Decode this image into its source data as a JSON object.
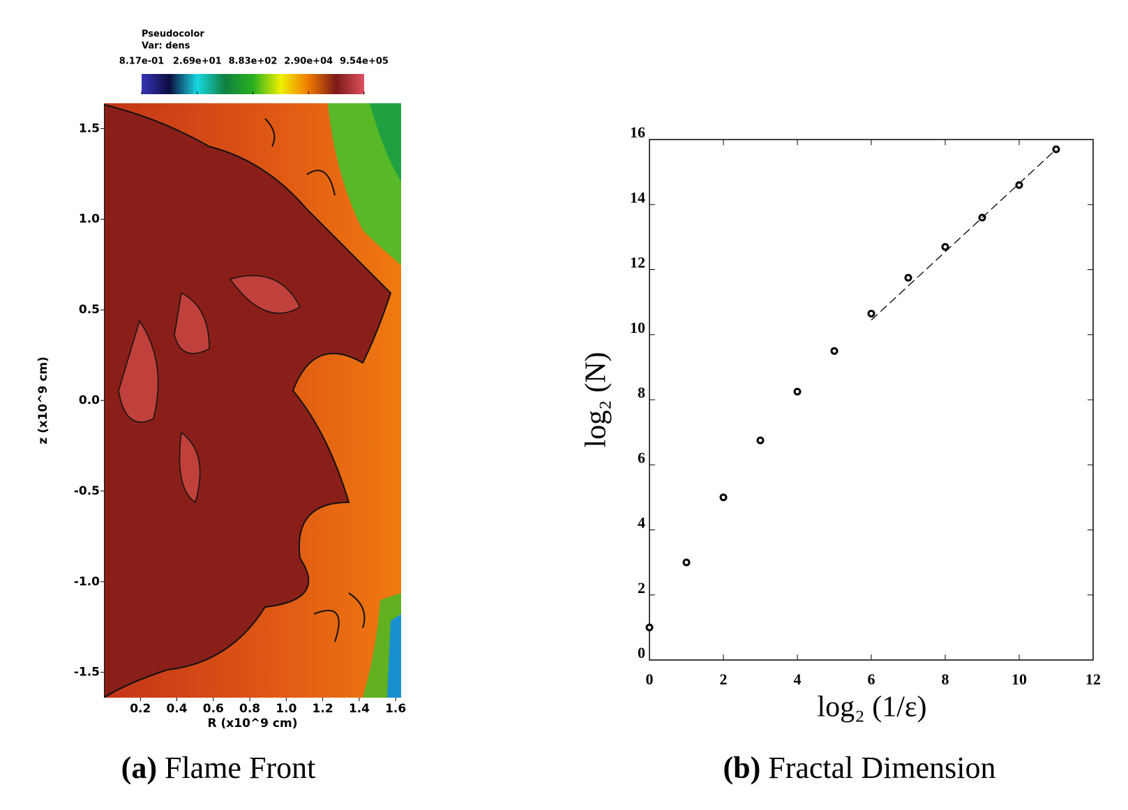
{
  "chart_data": [
    {
      "type": "image",
      "colorbar": {
        "title": "Pseudocolor",
        "subtitle": "Var: dens",
        "log_scale": true,
        "lim": [
          0.817,
          954000
        ],
        "ticks": [
          {
            "value": 0.817,
            "label": "8.17e-01"
          },
          {
            "value": 26.9,
            "label": "2.69e+01"
          },
          {
            "value": 883,
            "label": "8.83e+02"
          },
          {
            "value": 29000,
            "label": "2.90e+04"
          },
          {
            "value": 954000,
            "label": "9.54e+05"
          }
        ],
        "colors": [
          "#3535b8",
          "#0c0c40",
          "#18d8e0",
          "#108040",
          "#28b020",
          "#f0f000",
          "#f07a00",
          "#7a1a18",
          "#e05060"
        ]
      },
      "xlabel": "R (x10^9 cm)",
      "ylabel": "z (x10^9 cm)",
      "xlim": [
        0,
        1.63
      ],
      "ylim": [
        -1.64,
        1.64
      ],
      "xticks": [
        0.2,
        0.4,
        0.6,
        0.8,
        {
          "value": 1,
          "label": "1.0"
        },
        1.2,
        1.4,
        1.6
      ],
      "yticks": [
        -1.5,
        {
          "value": -1,
          "label": "-1.0"
        },
        -0.5,
        {
          "value": 0,
          "label": "0.0"
        },
        0.5,
        {
          "value": 1,
          "label": "1.0"
        },
        1.5
      ],
      "caption_label": "(a)",
      "caption": "Flame Front"
    },
    {
      "type": "scatter",
      "xlabel": "log₂ (1/ε)",
      "ylabel": "log₂ (N)",
      "xlim": [
        0,
        12
      ],
      "ylim": [
        0,
        16
      ],
      "xticks": [
        0,
        2,
        4,
        6,
        8,
        10,
        12
      ],
      "yticks": [
        0,
        2,
        4,
        6,
        8,
        10,
        12,
        14,
        16
      ],
      "series": [
        {
          "mode": "markers",
          "color": "#000000",
          "x": [
            0,
            1,
            2,
            3,
            4,
            5,
            6,
            7,
            8,
            9,
            10,
            11
          ],
          "values": [
            1,
            3,
            5,
            6.75,
            8.25,
            9.5,
            10.65,
            11.75,
            12.7,
            13.6,
            14.6,
            15.7
          ]
        },
        {
          "mode": "dashed-line",
          "color": "#000000",
          "x": [
            6,
            11
          ],
          "values": [
            10.45,
            15.7
          ]
        }
      ],
      "caption_label": "(b)",
      "caption": "Fractal Dimension"
    }
  ]
}
